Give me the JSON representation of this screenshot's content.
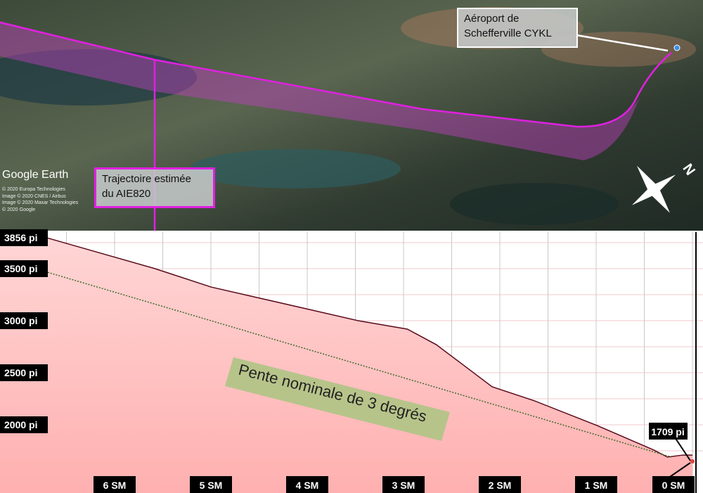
{
  "map": {
    "logo": "Google Earth",
    "credits": [
      "© 2020 Europa Technologies",
      "Image © 2020 CNES / Airbus",
      "Image © 2020 Maxar Technologies",
      "© 2020 Google"
    ],
    "airport_label": [
      "Aéroport de",
      "Schefferville CYKL"
    ],
    "trajectory_label": [
      "Trajectoire estimée",
      "du AIE820"
    ],
    "north_label": "N",
    "trajectory_color": "#e020e0"
  },
  "chart_data": {
    "type": "area",
    "x_unit": "SM",
    "y_unit": "pi",
    "xlim": [
      7.0,
      0
    ],
    "ylim": [
      1550,
      3900
    ],
    "x_ticks": [
      "6 SM",
      "5 SM",
      "4 SM",
      "3 SM",
      "2 SM",
      "1 SM",
      "0 SM"
    ],
    "x_tick_values": [
      6,
      5,
      4,
      3,
      2,
      1,
      0
    ],
    "y_ticks": [
      "3856 pi",
      "3500 pi",
      "3000 pi",
      "2500 pi",
      "2000 pi"
    ],
    "y_tick_values": [
      3856,
      3500,
      3000,
      2500,
      2000
    ],
    "end_label": "1709 pi",
    "grid": true,
    "series": [
      {
        "type": "area",
        "color": "#ffb8b8",
        "line_color": "#5a0a1a",
        "x": [
          6.93,
          5.58,
          5.0,
          3.98,
          3.47,
          2.96,
          2.66,
          2.37,
          2.08,
          1.64,
          0.99,
          0.4,
          0.26,
          0.1,
          0
        ],
        "y": [
          3856,
          3500,
          3324,
          3108,
          3000,
          2919,
          2770,
          2568,
          2365,
          2230,
          1993,
          1757,
          1690,
          1709,
          1709
        ]
      },
      {
        "name": "Pente nominale de 3 degrés",
        "type": "line",
        "style": "dotted",
        "color": "#3a6a2a",
        "x": [
          6.75,
          0.22
        ],
        "y": [
          3480,
          1690
        ]
      }
    ],
    "annotation": "Pente nominale de 3 degrés"
  }
}
